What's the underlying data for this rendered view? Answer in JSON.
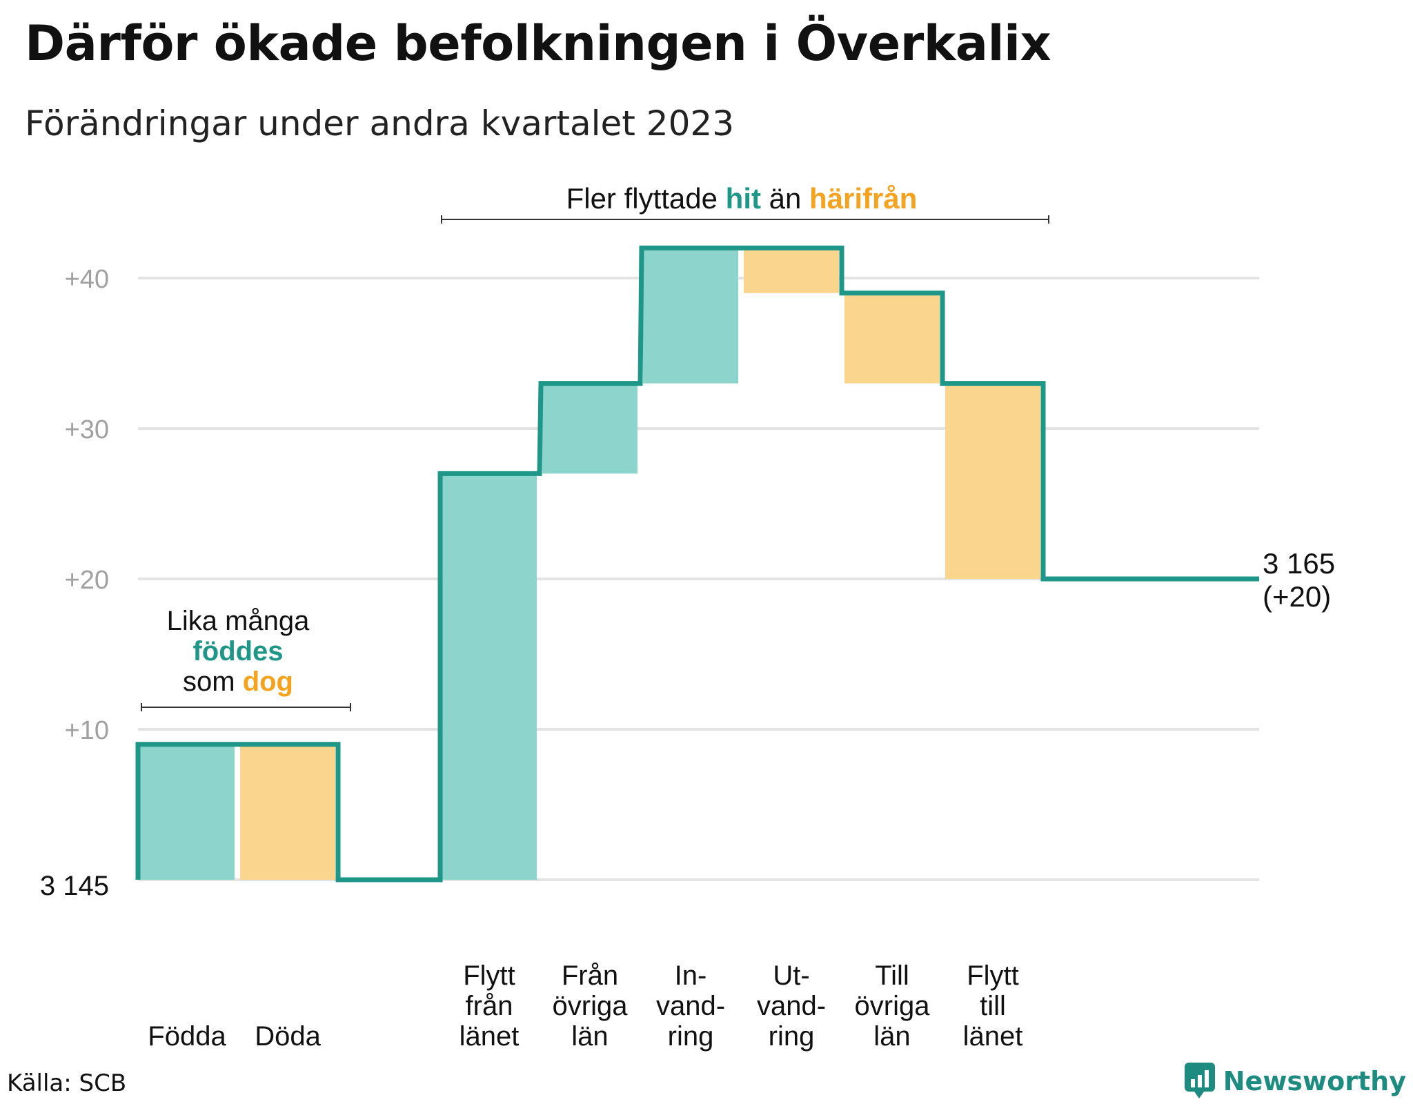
{
  "title": "Därför ökade befolkningen i Överkalix",
  "subtitle": "Förändringar under andra kvartalet 2023",
  "source": "Källa: SCB",
  "brand": "Newsworthy",
  "colors": {
    "increase": "#8dd4cc",
    "decrease": "#f9d58e",
    "line": "#1e9688",
    "accent_teal": "#1e9688",
    "accent_orange": "#f5a31e",
    "grid": "#e3e3e3",
    "tick": "#a0a0a0"
  },
  "chart_data": {
    "type": "waterfall",
    "base_label": "3  145",
    "base_value": 3145,
    "steps": [
      {
        "label": [
          "Födda"
        ],
        "delta": 9
      },
      {
        "label": [
          "Döda"
        ],
        "delta": -9
      },
      {
        "label": [
          "Flytt",
          "från",
          "länet"
        ],
        "delta": 27
      },
      {
        "label": [
          "Från",
          "övriga",
          "län"
        ],
        "delta": 6
      },
      {
        "label": [
          "In-",
          "vand-",
          "ring"
        ],
        "delta": 9
      },
      {
        "label": [
          "Ut-",
          "vand-",
          "ring"
        ],
        "delta": -3
      },
      {
        "label": [
          "Till",
          "övriga",
          "län"
        ],
        "delta": -6
      },
      {
        "label": [
          "Flytt",
          "till",
          "länet"
        ],
        "delta": -13
      }
    ],
    "gap_after_step": 1,
    "y_ticks": [
      "+10",
      "+20",
      "+30",
      "+40"
    ],
    "ylim": [
      0,
      40
    ],
    "end_label": [
      "3 165",
      "(+20)"
    ],
    "annotations": [
      {
        "id": "births-deaths",
        "lines": [
          [
            {
              "t": "Lika många",
              "c": "dark"
            }
          ],
          [
            {
              "t": "föddes",
              "c": "teal"
            }
          ],
          [
            {
              "t": "som ",
              "c": "dark"
            },
            {
              "t": "dog",
              "c": "orange"
            }
          ]
        ]
      },
      {
        "id": "migration",
        "lines": [
          [
            {
              "t": "Fler flyttade ",
              "c": "dark"
            },
            {
              "t": "hit",
              "c": "teal"
            },
            {
              "t": "  än ",
              "c": "dark"
            },
            {
              "t": "härifrån",
              "c": "orange"
            }
          ]
        ]
      }
    ]
  }
}
